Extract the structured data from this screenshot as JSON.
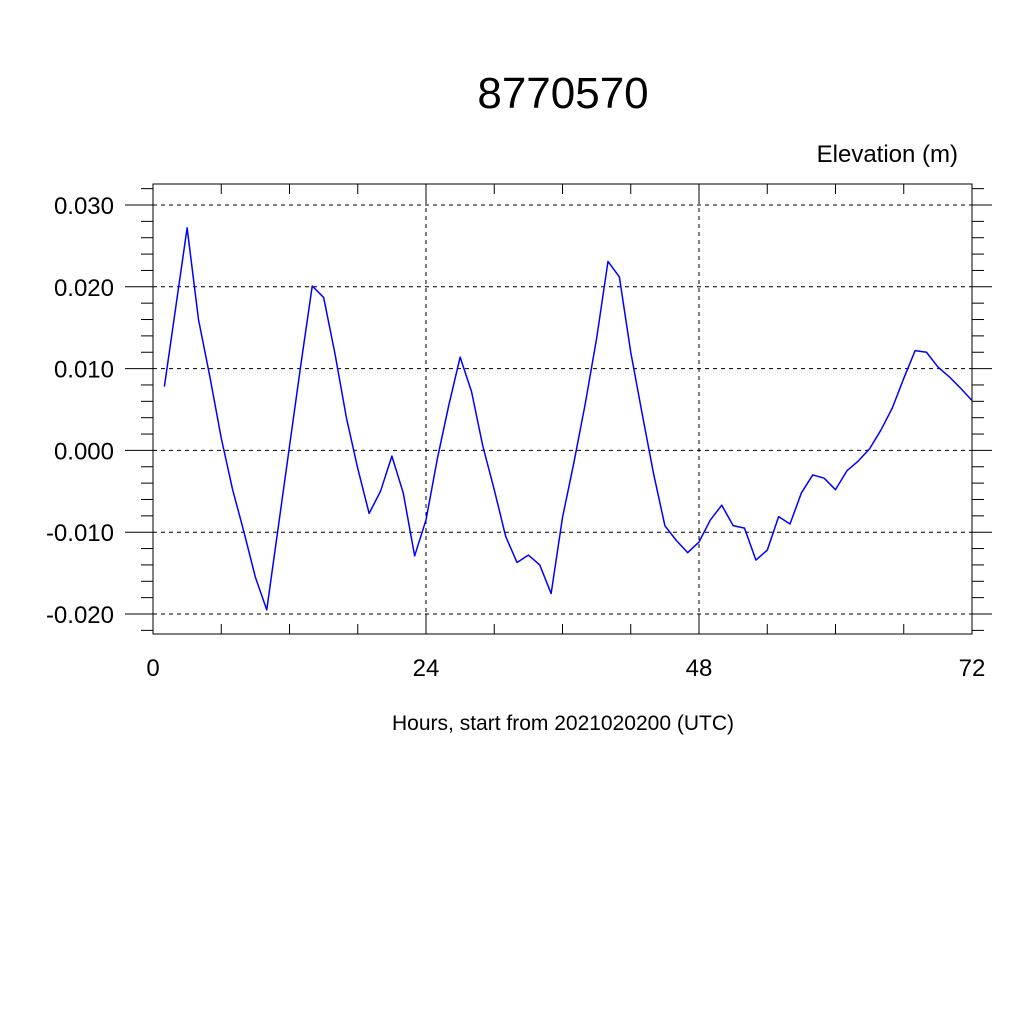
{
  "chart_data": {
    "type": "line",
    "title": "8770570",
    "ylabel": "Elevation (m)",
    "xlabel": "Hours, start from 2021020200 (UTC)",
    "xlim": [
      0,
      72
    ],
    "ylim": [
      -0.02,
      0.03
    ],
    "xticks": [
      0,
      24,
      48,
      72
    ],
    "xtick_labels": [
      "0",
      "24",
      "48",
      "72"
    ],
    "yticks": [
      -0.02,
      -0.01,
      0.0,
      0.01,
      0.02,
      0.03
    ],
    "ytick_labels": [
      "-0.020",
      "-0.010",
      "0.000",
      "0.010",
      "0.020",
      "0.030"
    ],
    "grid": true,
    "grid_style": "dashed",
    "line_color": "#0000ff",
    "series": [
      {
        "x": [
          1,
          2,
          3,
          4,
          5,
          6,
          7,
          8,
          9,
          10,
          11,
          12,
          13,
          14,
          15,
          16,
          17,
          18,
          19,
          20,
          21,
          22,
          23,
          24,
          25,
          26,
          27,
          28,
          29,
          30,
          31,
          32,
          33,
          34,
          35,
          36,
          37,
          38,
          39,
          40,
          41,
          42,
          43,
          44,
          45,
          46,
          47,
          48,
          49,
          50,
          51,
          52,
          53,
          54,
          55,
          56,
          57,
          58,
          59,
          60,
          61,
          62,
          63,
          64,
          65,
          66,
          67,
          68,
          69,
          70,
          71,
          72
        ],
        "values": [
          0.0078,
          0.0175,
          0.0272,
          0.016,
          0.009,
          0.0015,
          -0.0048,
          -0.01,
          -0.0155,
          -0.0195,
          -0.0095,
          0.0005,
          0.0105,
          0.0201,
          0.0187,
          0.0118,
          0.004,
          -0.0022,
          -0.0077,
          -0.005,
          -0.0007,
          -0.0052,
          -0.0129,
          -0.0085,
          -0.001,
          0.0055,
          0.0114,
          0.0072,
          0.0005,
          -0.0048,
          -0.0105,
          -0.0137,
          -0.0128,
          -0.014,
          -0.0175,
          -0.0082,
          -0.0015,
          0.0057,
          0.0137,
          0.0231,
          0.0212,
          0.012,
          0.0045,
          -0.0028,
          -0.0092,
          -0.011,
          -0.0125,
          -0.0112,
          -0.0085,
          -0.0067,
          -0.0092,
          -0.0095,
          -0.0134,
          -0.0122,
          -0.0081,
          -0.009,
          -0.0052,
          -0.003,
          -0.0034,
          -0.0048,
          -0.0025,
          -0.0013,
          0.0002,
          0.0025,
          0.0052,
          0.0088,
          0.0122,
          0.012,
          0.0102,
          0.009,
          0.0076,
          0.0061
        ]
      }
    ]
  }
}
